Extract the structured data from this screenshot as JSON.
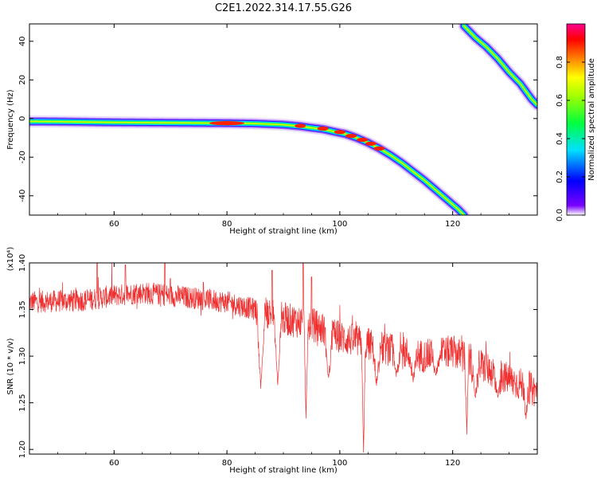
{
  "title": "C2E1.2022.314.17.55.G26",
  "chart_data": [
    {
      "type": "heatmap",
      "xlabel": "Height of straight line (km)",
      "ylabel": "Frequency (Hz)",
      "xlim": [
        45,
        135
      ],
      "ylim": [
        -50,
        49
      ],
      "xticks": [
        60,
        80,
        100,
        120
      ],
      "yticks": [
        40,
        20,
        0,
        -20,
        -40
      ],
      "colorbar": {
        "label": "Normalized spectral amplitude",
        "ticks": [
          "0.0",
          "0.2",
          "0.4",
          "0.6",
          "0.8"
        ],
        "range": [
          0,
          1
        ]
      },
      "traces": [
        {
          "name": "",
          "points": [
            [
              45,
              -1.5
            ],
            [
              50,
              -1.6
            ],
            [
              55,
              -1.8
            ],
            [
              60,
              -2.0
            ],
            [
              65,
              -2.1
            ],
            [
              70,
              -2.2
            ],
            [
              75,
              -2.3
            ],
            [
              80,
              -2.4
            ],
            [
              85,
              -2.6
            ],
            [
              90,
              -3.2
            ],
            [
              93,
              -4
            ],
            [
              95,
              -4.8
            ],
            [
              97,
              -5.5
            ],
            [
              99,
              -6.8
            ],
            [
              101,
              -8
            ],
            [
              103,
              -10
            ],
            [
              105,
              -12.5
            ],
            [
              107,
              -15.5
            ],
            [
              109,
              -19
            ],
            [
              111,
              -23
            ],
            [
              113,
              -27.5
            ],
            [
              115,
              -32
            ],
            [
              117,
              -37
            ],
            [
              119,
              -42
            ],
            [
              121,
              -47
            ],
            [
              122,
              -50
            ]
          ],
          "peaks": [
            [
              80,
              -2.4
            ],
            [
              93,
              -3.8
            ],
            [
              97,
              -5.2
            ],
            [
              100,
              -7
            ],
            [
              102,
              -9
            ],
            [
              104,
              -11
            ],
            [
              105.5,
              -13
            ],
            [
              107,
              -15.5
            ]
          ]
        },
        {
          "name": "",
          "points": [
            [
              122,
              48
            ],
            [
              124,
              42
            ],
            [
              126,
              37
            ],
            [
              128,
              31
            ],
            [
              130,
              24
            ],
            [
              132,
              18
            ],
            [
              134,
              10
            ],
            [
              135,
              7
            ]
          ],
          "peaks": []
        }
      ]
    },
    {
      "type": "line",
      "xlabel": "Height of straight line (km)",
      "ylabel": "SNR (10 * v/v)",
      "yexponent_label": "(x10⁴)",
      "xlim": [
        45,
        135
      ],
      "ylim": [
        1.195,
        1.4
      ],
      "xticks": [
        60,
        80,
        100,
        120
      ],
      "yticks": [
        "1.40",
        "1.35",
        "1.30",
        "1.25",
        "1.20"
      ],
      "series": [
        {
          "name": "",
          "color": "#f03030",
          "baseline": [
            [
              45,
              1.358
            ],
            [
              55,
              1.36
            ],
            [
              60,
              1.365
            ],
            [
              65,
              1.368
            ],
            [
              70,
              1.365
            ],
            [
              75,
              1.362
            ],
            [
              80,
              1.358
            ],
            [
              85,
              1.35
            ],
            [
              88,
              1.345
            ],
            [
              90,
              1.34
            ],
            [
              95,
              1.335
            ],
            [
              100,
              1.32
            ],
            [
              105,
              1.313
            ],
            [
              110,
              1.305
            ],
            [
              115,
              1.3
            ],
            [
              120,
              1.305
            ],
            [
              125,
              1.29
            ],
            [
              130,
              1.275
            ],
            [
              135,
              1.262
            ]
          ],
          "dips": [
            [
              86,
              1.265
            ],
            [
              89,
              1.27
            ],
            [
              94,
              1.232
            ],
            [
              98,
              1.275
            ],
            [
              104.2,
              1.197
            ],
            [
              106.5,
              1.268
            ],
            [
              110,
              1.28
            ],
            [
              113,
              1.275
            ],
            [
              117,
              1.28
            ],
            [
              122.5,
              1.218
            ],
            [
              124,
              1.255
            ],
            [
              128,
              1.255
            ],
            [
              133,
              1.23
            ]
          ],
          "spikes": [
            [
              57,
              1.4
            ],
            [
              62,
              1.398
            ],
            [
              69,
              1.4
            ],
            [
              88,
              1.392
            ],
            [
              93.5,
              1.4
            ],
            [
              95,
              1.385
            ]
          ]
        }
      ]
    }
  ]
}
